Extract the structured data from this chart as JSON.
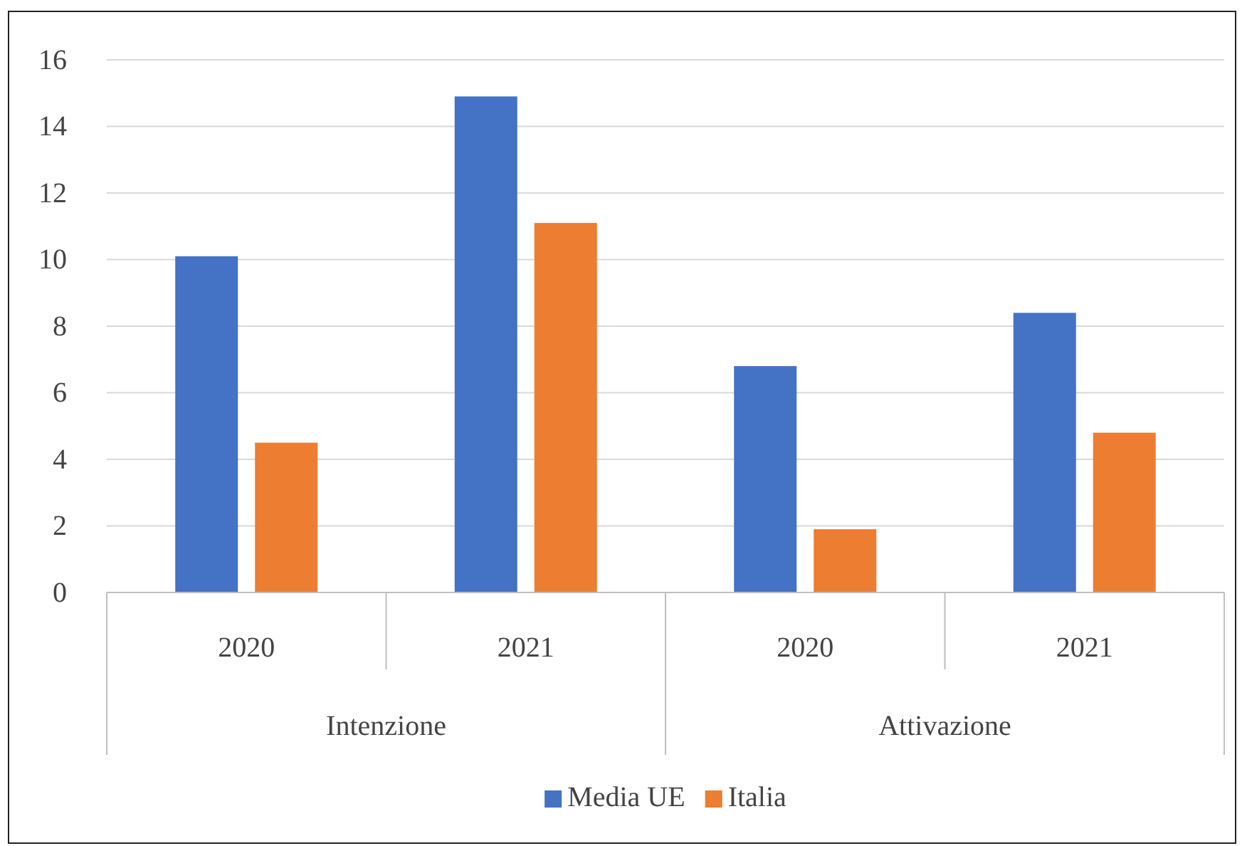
{
  "chart_data": {
    "type": "bar",
    "categories": [
      "2020",
      "2021",
      "2020",
      "2021"
    ],
    "series": [
      {
        "name": "Media UE",
        "color": "#4472c4",
        "values": [
          10.1,
          14.9,
          6.8,
          8.4
        ]
      },
      {
        "name": "Italia",
        "color": "#ed7d31",
        "values": [
          4.5,
          11.1,
          1.9,
          4.8
        ]
      }
    ],
    "annotations": [
      "Intenzione",
      "Attivazione"
    ],
    "ylim": [
      0,
      16
    ],
    "yticks": [
      0,
      2,
      4,
      6,
      8,
      10,
      12,
      14,
      16
    ],
    "grid": "y",
    "legend": "bottom"
  }
}
